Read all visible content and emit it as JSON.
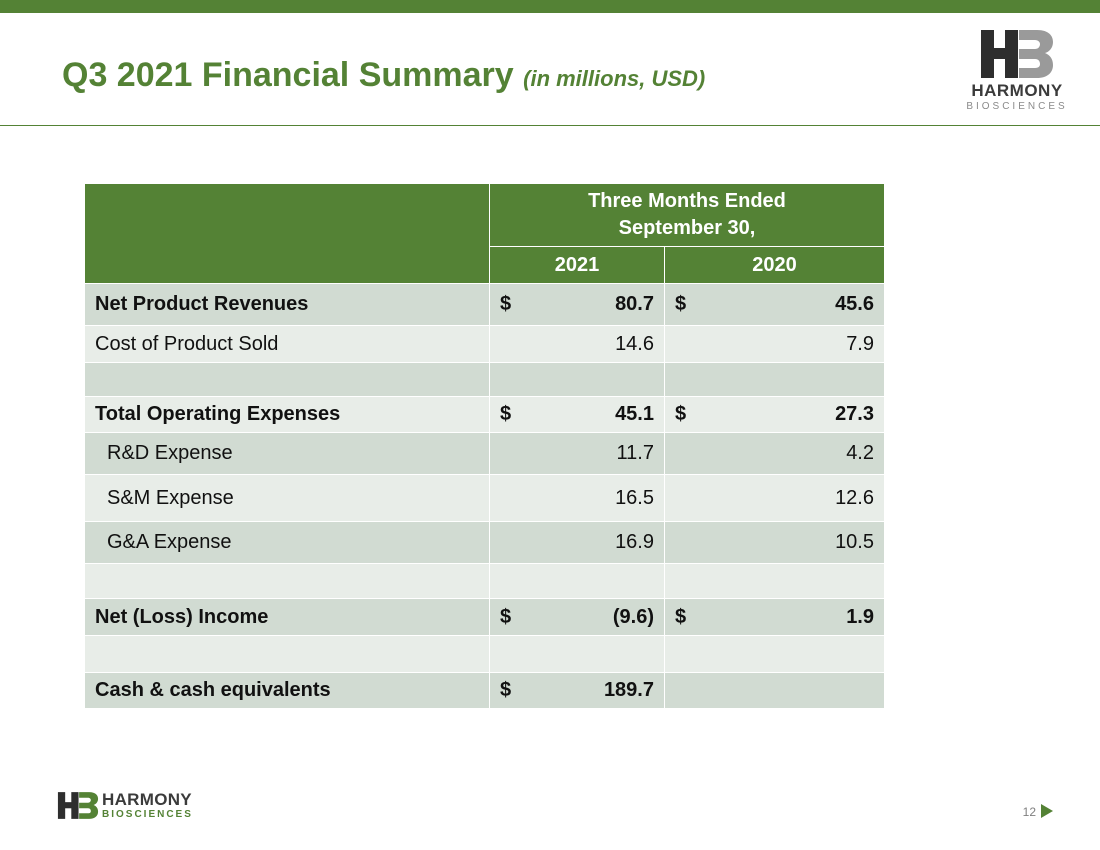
{
  "slide": {
    "title": "Q3 2021 Financial Summary",
    "subtitle": "(in millions, USD)",
    "page_number": "12"
  },
  "logo": {
    "brand": "HARMONY",
    "tagline": "BIOSCIENCES"
  },
  "colors": {
    "accent": "#548235",
    "row_dark": "#d1dbd2",
    "row_light": "#e8ede8"
  },
  "icons": [
    "hb-logo-icon",
    "next-arrow-icon"
  ],
  "table": {
    "period_header": "Three Months Ended September 30,",
    "year_2021": "2021",
    "year_2020": "2020",
    "rows": [
      {
        "label": "Net Product Revenues",
        "cur_2021": "$",
        "v2021": "80.7",
        "cur_2020": "$",
        "v2020": "45.6"
      },
      {
        "label": "Cost of Product Sold",
        "cur_2021": "",
        "v2021": "14.6",
        "cur_2020": "",
        "v2020": "7.9"
      },
      {
        "label": "",
        "cur_2021": "",
        "v2021": "",
        "cur_2020": "",
        "v2020": ""
      },
      {
        "label": "Total Operating Expenses",
        "cur_2021": "$",
        "v2021": "45.1",
        "cur_2020": "$",
        "v2020": "27.3"
      },
      {
        "label": "R&D Expense",
        "cur_2021": "",
        "v2021": "11.7",
        "cur_2020": "",
        "v2020": "4.2"
      },
      {
        "label": "S&M Expense",
        "cur_2021": "",
        "v2021": "16.5",
        "cur_2020": "",
        "v2020": "12.6"
      },
      {
        "label": "G&A Expense",
        "cur_2021": "",
        "v2021": "16.9",
        "cur_2020": "",
        "v2020": "10.5"
      },
      {
        "label": "",
        "cur_2021": "",
        "v2021": "",
        "cur_2020": "",
        "v2020": ""
      },
      {
        "label": "Net (Loss) Income",
        "cur_2021": "$",
        "v2021": "(9.6)",
        "cur_2020": "$",
        "v2020": "1.9"
      },
      {
        "label": "",
        "cur_2021": "",
        "v2021": "",
        "cur_2020": "",
        "v2020": ""
      },
      {
        "label": "Cash & cash equivalents",
        "cur_2021": "$",
        "v2021": "189.7",
        "cur_2020": "",
        "v2020": ""
      }
    ]
  }
}
